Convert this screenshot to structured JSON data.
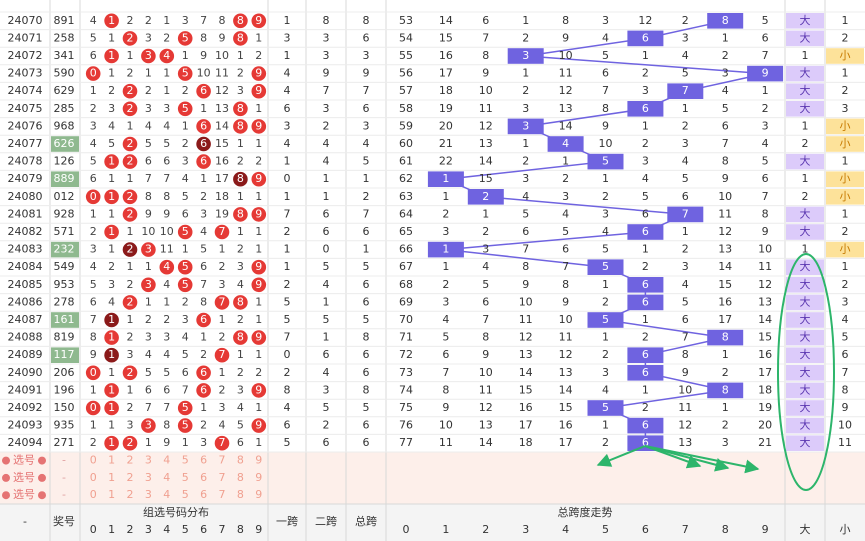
{
  "header": {
    "period": "-",
    "number": "奖号",
    "dist": "组选号码分布",
    "span1": "一跨",
    "span2": "二跨",
    "span": "总跨",
    "trend": "总跨度走势",
    "big": "大",
    "small": "小",
    "pick": "选号",
    "dash": "-"
  },
  "digits": [
    0,
    1,
    2,
    3,
    4,
    5,
    6,
    7,
    8,
    9
  ],
  "rows": [
    {
      "period": "24070",
      "number": "891",
      "dist": [
        4,
        1,
        2,
        2,
        1,
        3,
        7,
        8,
        8,
        9
      ],
      "span1": 1,
      "span2": 8,
      "span": 8,
      "trend": [
        53,
        14,
        6,
        1,
        8,
        3,
        12,
        2,
        8,
        5
      ],
      "big": "大",
      "small": 1
    },
    {
      "period": "24071",
      "number": "258",
      "dist": [
        5,
        1,
        2,
        3,
        2,
        5,
        8,
        9,
        8,
        1
      ],
      "span1": 3,
      "span2": 3,
      "span": 6,
      "trend": [
        54,
        15,
        7,
        2,
        9,
        4,
        6,
        3,
        1,
        6
      ],
      "big": "大",
      "small": 2
    },
    {
      "period": "24072",
      "number": "341",
      "dist": [
        6,
        1,
        1,
        3,
        4,
        1,
        9,
        10,
        1,
        2
      ],
      "span1": 1,
      "span2": 3,
      "span": 3,
      "trend": [
        55,
        16,
        8,
        3,
        10,
        5,
        1,
        4,
        2,
        7
      ],
      "big": 1,
      "small": "小"
    },
    {
      "period": "24073",
      "number": "590",
      "dist": [
        0,
        1,
        2,
        1,
        1,
        5,
        10,
        11,
        2,
        9
      ],
      "span1": 4,
      "span2": 9,
      "span": 9,
      "trend": [
        56,
        17,
        9,
        1,
        11,
        6,
        2,
        5,
        3,
        9
      ],
      "big": "大",
      "small": 1
    },
    {
      "period": "24074",
      "number": "629",
      "dist": [
        1,
        2,
        2,
        2,
        1,
        2,
        6,
        12,
        3,
        9
      ],
      "span1": 4,
      "span2": 7,
      "span": 7,
      "trend": [
        57,
        18,
        10,
        2,
        12,
        7,
        3,
        7,
        4,
        1
      ],
      "big": "大",
      "small": 2
    },
    {
      "period": "24075",
      "number": "285",
      "dist": [
        2,
        3,
        2,
        3,
        3,
        5,
        1,
        13,
        8,
        1
      ],
      "span1": 6,
      "span2": 3,
      "span": 6,
      "trend": [
        58,
        19,
        11,
        3,
        13,
        8,
        6,
        1,
        5,
        2
      ],
      "big": "大",
      "small": 3
    },
    {
      "period": "24076",
      "number": "968",
      "dist": [
        3,
        4,
        1,
        4,
        4,
        1,
        6,
        14,
        8,
        9
      ],
      "span1": 3,
      "span2": 2,
      "span": 3,
      "trend": [
        59,
        20,
        12,
        3,
        14,
        9,
        1,
        2,
        6,
        3
      ],
      "big": 1,
      "small": "小"
    },
    {
      "period": "24077",
      "number": "626",
      "dist": [
        4,
        5,
        2,
        5,
        5,
        2,
        6,
        15,
        1,
        1
      ],
      "span1": 4,
      "span2": 4,
      "span": 4,
      "trend": [
        60,
        21,
        13,
        1,
        4,
        10,
        2,
        3,
        7,
        4
      ],
      "big": 2,
      "small": "小"
    },
    {
      "period": "24078",
      "number": "126",
      "dist": [
        5,
        1,
        2,
        6,
        6,
        3,
        6,
        16,
        2,
        2
      ],
      "span1": 1,
      "span2": 4,
      "span": 5,
      "trend": [
        61,
        22,
        14,
        2,
        1,
        5,
        3,
        4,
        8,
        5
      ],
      "big": "大",
      "small": 1
    },
    {
      "period": "24079",
      "number": "889",
      "dist": [
        6,
        1,
        1,
        7,
        7,
        4,
        1,
        17,
        8,
        9
      ],
      "span1": 0,
      "span2": 1,
      "span": 1,
      "trend": [
        62,
        1,
        15,
        3,
        2,
        1,
        4,
        5,
        9,
        6
      ],
      "big": 1,
      "small": "小"
    },
    {
      "period": "24080",
      "number": "012",
      "dist": [
        0,
        1,
        2,
        8,
        8,
        5,
        2,
        18,
        1,
        1
      ],
      "span1": 1,
      "span2": 1,
      "span": 2,
      "trend": [
        63,
        1,
        2,
        4,
        3,
        2,
        5,
        6,
        10,
        7
      ],
      "big": 2,
      "small": "小"
    },
    {
      "period": "24081",
      "number": "928",
      "dist": [
        1,
        1,
        2,
        9,
        9,
        6,
        3,
        19,
        8,
        9
      ],
      "span1": 7,
      "span2": 6,
      "span": 7,
      "trend": [
        64,
        2,
        1,
        5,
        4,
        3,
        6,
        7,
        11,
        8
      ],
      "big": "大",
      "small": 1
    },
    {
      "period": "24082",
      "number": "571",
      "dist": [
        2,
        1,
        1,
        10,
        10,
        5,
        4,
        7,
        1,
        1
      ],
      "span1": 2,
      "span2": 6,
      "span": 6,
      "trend": [
        65,
        3,
        2,
        6,
        5,
        4,
        6,
        1,
        12,
        9
      ],
      "big": "大",
      "small": 2
    },
    {
      "period": "24083",
      "number": "232",
      "dist": [
        3,
        1,
        2,
        3,
        11,
        1,
        5,
        1,
        2,
        1
      ],
      "span1": 1,
      "span2": 0,
      "span": 1,
      "trend": [
        66,
        1,
        3,
        7,
        6,
        5,
        1,
        2,
        13,
        10
      ],
      "big": 1,
      "small": "小"
    },
    {
      "period": "24084",
      "number": "549",
      "dist": [
        4,
        2,
        1,
        1,
        4,
        5,
        6,
        2,
        3,
        9
      ],
      "span1": 1,
      "span2": 5,
      "span": 5,
      "trend": [
        67,
        1,
        4,
        8,
        7,
        5,
        2,
        3,
        14,
        11
      ],
      "big": "大",
      "small": 1
    },
    {
      "period": "24085",
      "number": "953",
      "dist": [
        5,
        3,
        2,
        3,
        4,
        5,
        7,
        3,
        4,
        9
      ],
      "span1": 2,
      "span2": 4,
      "span": 6,
      "trend": [
        68,
        2,
        5,
        9,
        8,
        1,
        6,
        4,
        15,
        12
      ],
      "big": "大",
      "small": 2
    },
    {
      "period": "24086",
      "number": "278",
      "dist": [
        6,
        4,
        2,
        1,
        1,
        2,
        8,
        7,
        8,
        1
      ],
      "span1": 5,
      "span2": 1,
      "span": 6,
      "trend": [
        69,
        3,
        6,
        10,
        9,
        2,
        6,
        5,
        16,
        13
      ],
      "big": "大",
      "small": 3
    },
    {
      "period": "24087",
      "number": "161",
      "dist": [
        7,
        1,
        1,
        2,
        2,
        3,
        6,
        1,
        2,
        1
      ],
      "span1": 5,
      "span2": 5,
      "span": 5,
      "trend": [
        70,
        4,
        7,
        11,
        10,
        5,
        1,
        6,
        17,
        14
      ],
      "big": "大",
      "small": 4
    },
    {
      "period": "24088",
      "number": "819",
      "dist": [
        8,
        1,
        2,
        3,
        3,
        4,
        1,
        2,
        8,
        9
      ],
      "span1": 7,
      "span2": 1,
      "span": 8,
      "trend": [
        71,
        5,
        8,
        12,
        11,
        1,
        2,
        7,
        8,
        15
      ],
      "big": "大",
      "small": 5
    },
    {
      "period": "24089",
      "number": "117",
      "dist": [
        9,
        1,
        3,
        4,
        4,
        5,
        2,
        7,
        1,
        1
      ],
      "span1": 0,
      "span2": 6,
      "span": 6,
      "trend": [
        72,
        6,
        9,
        13,
        12,
        2,
        6,
        8,
        1,
        16
      ],
      "big": "大",
      "small": 6
    },
    {
      "period": "24090",
      "number": "206",
      "dist": [
        0,
        1,
        2,
        5,
        5,
        6,
        6,
        1,
        2,
        2
      ],
      "span1": 2,
      "span2": 4,
      "span": 6,
      "trend": [
        73,
        7,
        10,
        14,
        13,
        3,
        6,
        9,
        2,
        17
      ],
      "big": "大",
      "small": 7
    },
    {
      "period": "24091",
      "number": "196",
      "dist": [
        1,
        1,
        1,
        6,
        6,
        7,
        6,
        2,
        3,
        9
      ],
      "span1": 8,
      "span2": 3,
      "span": 8,
      "trend": [
        74,
        8,
        11,
        15,
        14,
        4,
        1,
        10,
        8,
        18
      ],
      "big": "大",
      "small": 8
    },
    {
      "period": "24092",
      "number": "150",
      "dist": [
        0,
        1,
        2,
        7,
        7,
        5,
        1,
        3,
        4,
        1
      ],
      "span1": 4,
      "span2": 5,
      "span": 5,
      "trend": [
        75,
        9,
        12,
        16,
        15,
        5,
        2,
        11,
        1,
        19
      ],
      "big": "大",
      "small": 9
    },
    {
      "period": "24093",
      "number": "935",
      "dist": [
        1,
        1,
        3,
        3,
        8,
        5,
        2,
        4,
        5,
        9
      ],
      "span1": 6,
      "span2": 2,
      "span": 6,
      "trend": [
        76,
        10,
        13,
        17,
        16,
        1,
        6,
        12,
        2,
        20
      ],
      "big": "大",
      "small": 10
    },
    {
      "period": "24094",
      "number": "271",
      "dist": [
        2,
        1,
        2,
        1,
        9,
        1,
        3,
        7,
        6,
        1
      ],
      "span1": 5,
      "span2": 6,
      "span": 6,
      "trend": [
        77,
        11,
        14,
        18,
        17,
        2,
        6,
        13,
        3,
        21
      ],
      "big": "大",
      "small": 11
    }
  ]
}
